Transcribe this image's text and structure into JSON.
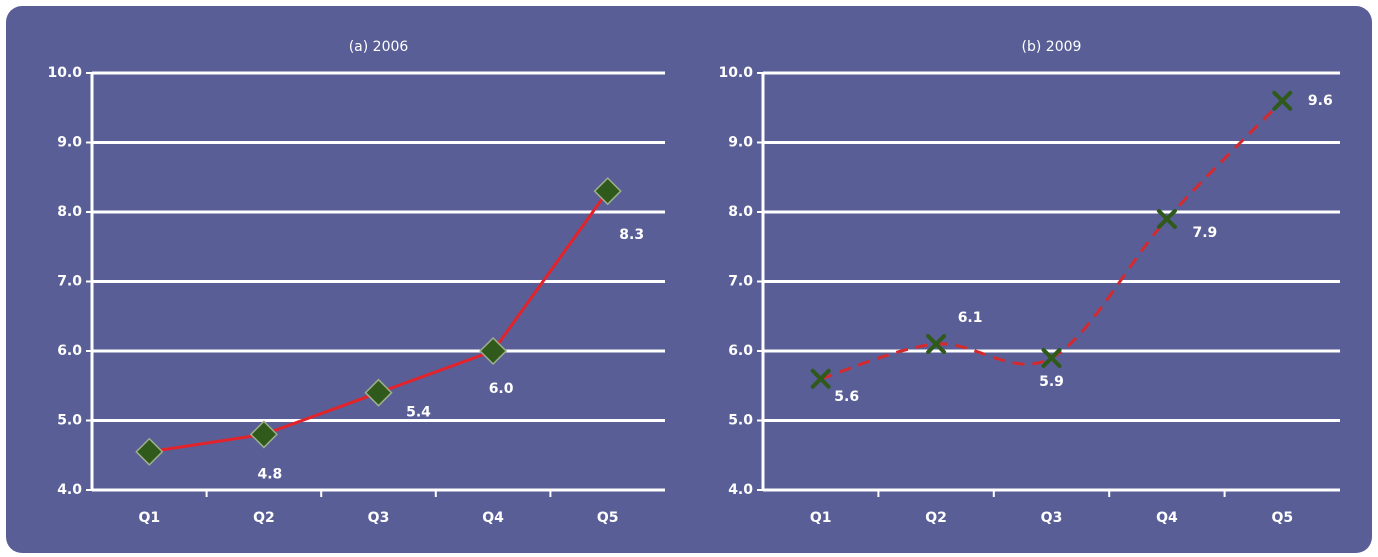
{
  "chart_data": [
    {
      "type": "line",
      "title": "(a) 2006",
      "categories": [
        "Q1",
        "Q2",
        "Q3",
        "Q4",
        "Q5"
      ],
      "values": [
        4.55,
        4.8,
        5.4,
        6.0,
        8.3
      ],
      "value_labels": [
        null,
        "4.8",
        "5.4",
        "6.0",
        "8.3"
      ],
      "color": "#e3232c",
      "marker": "diamond",
      "marker_color": "#2f5a1c",
      "linestyle": "solid",
      "ylim": [
        4,
        10
      ],
      "yticks": [
        {
          "value": 4,
          "label": "4.0"
        },
        {
          "value": 5,
          "label": "5.0"
        },
        {
          "value": 6,
          "label": "6.0"
        },
        {
          "value": 7,
          "label": "7.0"
        },
        {
          "value": 8,
          "label": "8.0"
        },
        {
          "value": 9,
          "label": "9.0"
        },
        {
          "value": 10,
          "label": "10.0"
        }
      ],
      "grid": true
    },
    {
      "type": "line",
      "title": "(b) 2009",
      "categories": [
        "Q1",
        "Q2",
        "Q3",
        "Q4",
        "Q5"
      ],
      "values": [
        5.6,
        6.1,
        5.9,
        7.9,
        9.6
      ],
      "value_labels": [
        "5.6",
        "6.1",
        "5.9",
        "7.9",
        "9.6"
      ],
      "color": "#d42a2f",
      "marker": "x",
      "marker_color": "#2f5a1c",
      "linestyle": "dashed",
      "ylim": [
        4,
        10
      ],
      "yticks": [
        {
          "value": 4,
          "label": "4.0"
        },
        {
          "value": 5,
          "label": "5.0"
        },
        {
          "value": 6,
          "label": "6.0"
        },
        {
          "value": 7,
          "label": "7.0"
        },
        {
          "value": 8,
          "label": "8.0"
        },
        {
          "value": 9,
          "label": "9.0"
        },
        {
          "value": 10,
          "label": "10.0"
        }
      ],
      "grid": true
    }
  ]
}
